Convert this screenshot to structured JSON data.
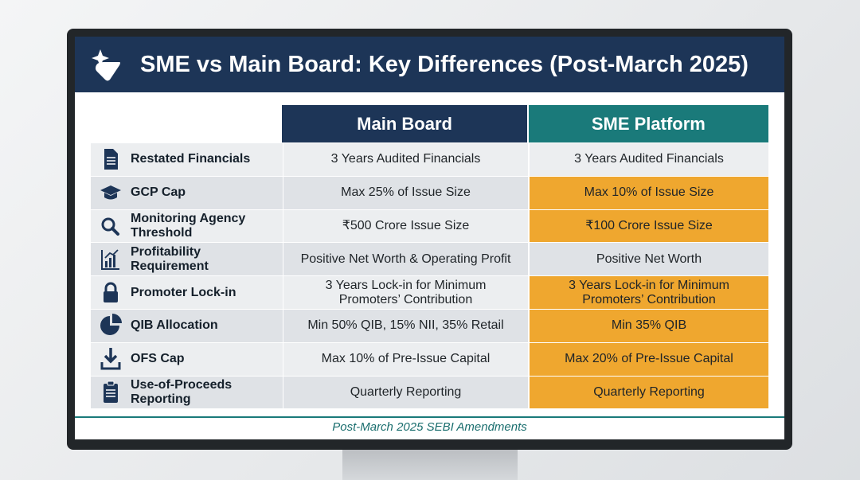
{
  "header": {
    "title": "SME vs Main Board: Key Differences (Post-March 2025)"
  },
  "table": {
    "columns": [
      "Main Board",
      "SME Platform"
    ],
    "rows": [
      {
        "label": "Restated Financials",
        "cells": [
          "3 Years Audited Financials",
          "3 Years Audited Financials"
        ],
        "highlight": false
      },
      {
        "label": "GCP Cap",
        "cells": [
          "Max 25% of Issue Size",
          "Max 10% of Issue Size"
        ],
        "highlight": true
      },
      {
        "label": "Monitoring Agency Threshold",
        "cells": [
          "₹500 Crore Issue Size",
          "₹100 Crore Issue Size"
        ],
        "highlight": true
      },
      {
        "label": "Profitability Requirement",
        "cells": [
          "Positive Net Worth & Operating Profit",
          "Positive Net Worth"
        ],
        "highlight": false
      },
      {
        "label": "Promoter Lock-in",
        "cells": [
          "3 Years Lock-in for Minimum Promoters’ Contribution",
          "3 Years Lock-in for Minimum Promoters’ Contribution"
        ],
        "highlight": true
      },
      {
        "label": "QIB Allocation",
        "cells": [
          "Min 50% QIB, 15% NII, 35% Retail",
          "Min 35% QIB"
        ],
        "highlight": true
      },
      {
        "label": "OFS Cap",
        "cells": [
          "Max 10% of Pre-Issue Capital",
          "Max 20% of Pre-Issue Capital"
        ],
        "highlight": true
      },
      {
        "label": "Use-of-Proceeds Reporting",
        "cells": [
          "Quarterly Reporting",
          "Quarterly Reporting"
        ],
        "highlight": true
      }
    ]
  },
  "footer": "Post-March 2025 SEBI Amendments"
}
